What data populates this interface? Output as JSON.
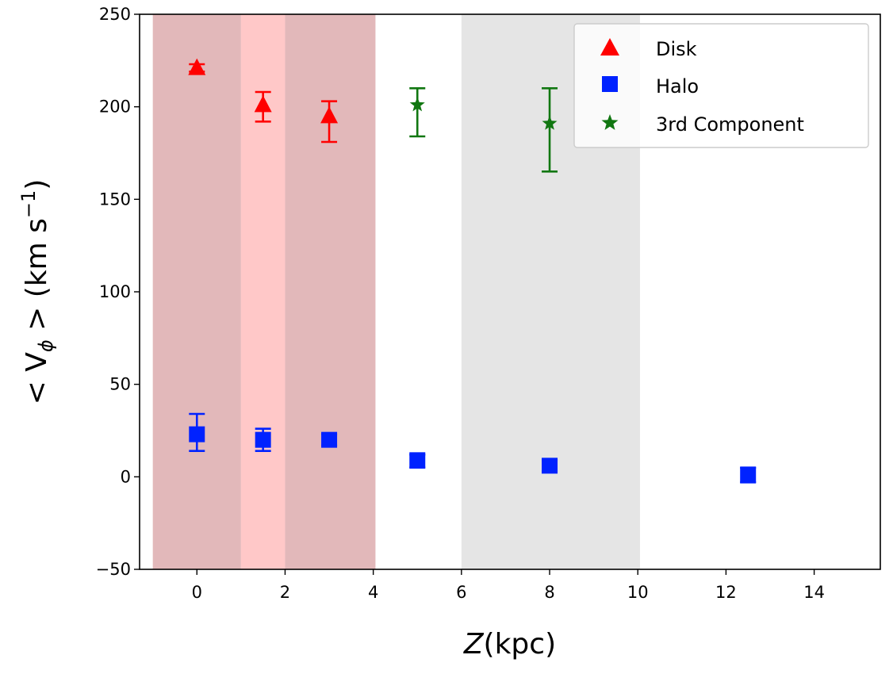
{
  "chart_data": {
    "type": "scatter",
    "xlabel": {
      "symbol": "Z",
      "unit": "(kpc)"
    },
    "ylabel": {
      "main": "< V",
      "sub": "ϕ",
      "tail": " > (km s",
      "sup": "−1",
      "close": ")"
    },
    "xlim": [
      -1.3,
      15.5
    ],
    "ylim": [
      -50,
      250
    ],
    "xticks": [
      0,
      2,
      4,
      6,
      8,
      10,
      12,
      14
    ],
    "yticks": [
      -50,
      0,
      50,
      100,
      150,
      200,
      250
    ],
    "xtick_labels": [
      "0",
      "2",
      "4",
      "6",
      "8",
      "10",
      "12",
      "14"
    ],
    "ytick_labels": [
      "−50",
      "0",
      "50",
      "100",
      "150",
      "200",
      "250"
    ],
    "grid": false,
    "legend_position": "top-right",
    "shaded_regions": [
      {
        "x": [
          -1.0,
          1.0
        ],
        "color": "#e2b8ba"
      },
      {
        "x": [
          1.0,
          2.0
        ],
        "color": "#ffc8c8"
      },
      {
        "x": [
          2.0,
          4.05
        ],
        "color": "#e2b8ba"
      },
      {
        "x": [
          6.0,
          10.05
        ],
        "color": "#e5e5e5"
      }
    ],
    "series": [
      {
        "name": "Disk",
        "marker": "triangle",
        "color": "#ff0000",
        "points": [
          {
            "x": 0,
            "y": 221,
            "yerr_low": 219,
            "yerr_high": 223
          },
          {
            "x": 1.5,
            "y": 201,
            "yerr_low": 192,
            "yerr_high": 208
          },
          {
            "x": 3,
            "y": 195,
            "yerr_low": 181,
            "yerr_high": 203
          }
        ]
      },
      {
        "name": "Halo",
        "marker": "square",
        "color": "#0022ff",
        "points": [
          {
            "x": 0,
            "y": 23,
            "yerr_low": 14,
            "yerr_high": 34
          },
          {
            "x": 1.5,
            "y": 20,
            "yerr_low": 14,
            "yerr_high": 26
          },
          {
            "x": 3,
            "y": 20,
            "yerr_low": 17,
            "yerr_high": 23
          },
          {
            "x": 5,
            "y": 9,
            "yerr_low": 5,
            "yerr_high": 12
          },
          {
            "x": 8,
            "y": 6,
            "yerr_low": 3,
            "yerr_high": 9
          },
          {
            "x": 12.5,
            "y": 1,
            "yerr_low": -3,
            "yerr_high": 5
          }
        ]
      },
      {
        "name": "3rd Component",
        "marker": "star",
        "color": "#117711",
        "points": [
          {
            "x": 5,
            "y": 201,
            "yerr_low": 184,
            "yerr_high": 210
          },
          {
            "x": 8,
            "y": 191,
            "yerr_low": 165,
            "yerr_high": 210
          }
        ]
      }
    ]
  }
}
